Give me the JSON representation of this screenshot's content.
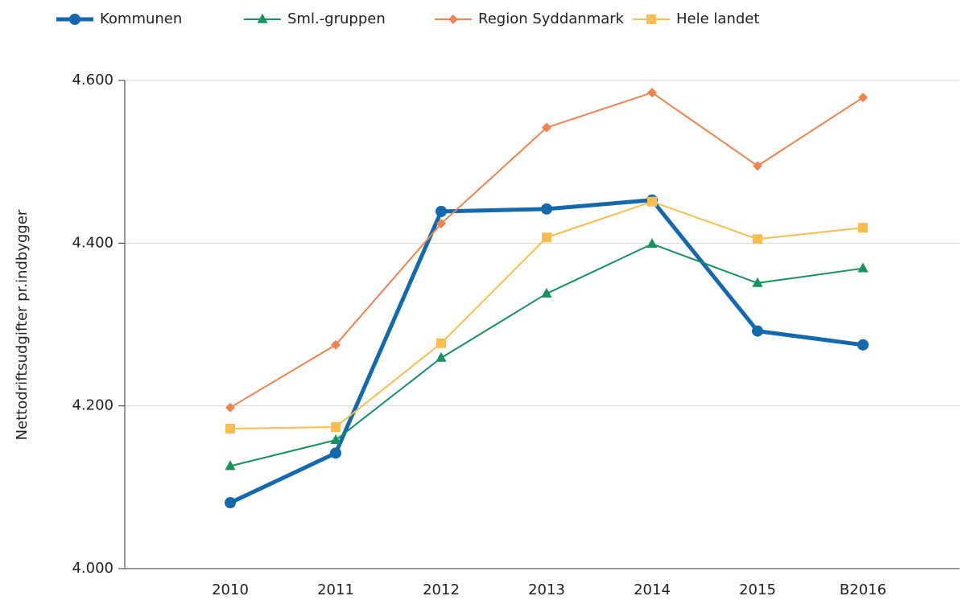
{
  "chart_data": {
    "type": "line",
    "y_label": "Nettodriftsudgifter pr.indbygger",
    "categories": [
      "2010",
      "2011",
      "2012",
      "2013",
      "2014",
      "2015",
      "B2016"
    ],
    "series": [
      {
        "name": "Kommunen",
        "color": "#1369ad",
        "marker": "circle",
        "line_width": 5,
        "values": [
          4081,
          4142,
          4439,
          4442,
          4453,
          4292,
          4275
        ]
      },
      {
        "name": "Sml.-gruppen",
        "color": "#16925e",
        "marker": "triangle",
        "line_width": 2,
        "values": [
          4126,
          4158,
          4259,
          4338,
          4399,
          4351,
          4369
        ]
      },
      {
        "name": "Region Syddanmark",
        "color": "#ef8350",
        "marker": "diamond",
        "line_width": 2,
        "values": [
          4198,
          4275,
          4424,
          4542,
          4585,
          4495,
          4579
        ]
      },
      {
        "name": "Hele landet",
        "color": "#fbbd4e",
        "marker": "square",
        "line_width": 2,
        "values": [
          4172,
          4174,
          4277,
          4407,
          4451,
          4405,
          4419
        ]
      }
    ],
    "ylim": [
      4000,
      4600
    ],
    "yticks": [
      {
        "value": 4000,
        "label": "4.000"
      },
      {
        "value": 4200,
        "label": "4.200"
      },
      {
        "value": 4400,
        "label": "4.400"
      },
      {
        "value": 4600,
        "label": "4.600"
      }
    ],
    "grid": true,
    "legend": "top"
  }
}
